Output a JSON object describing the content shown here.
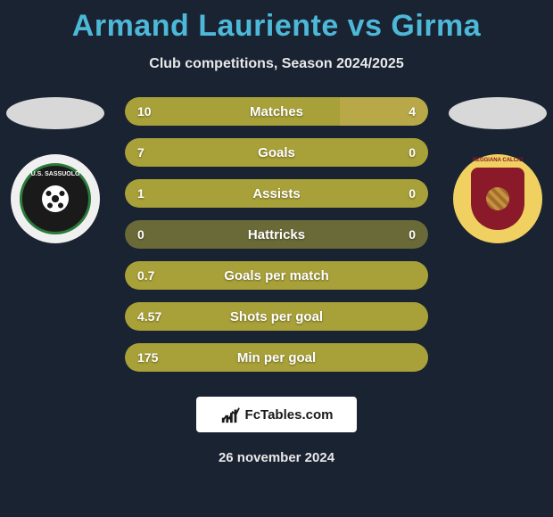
{
  "title": "Armand Lauriente vs Girma",
  "subtitle": "Club competitions, Season 2024/2025",
  "date": "26 november 2024",
  "watermark": "FcTables.com",
  "colors": {
    "background": "#1a2332",
    "title": "#4db8d8",
    "text": "#e8e8e8",
    "bar_empty": "#6a6a38",
    "bar_left_fill": "#a8a038",
    "bar_right_fill": "#b8a848",
    "ellipse": "#d8d8d8"
  },
  "left_player": {
    "crest_name": "sassuolo-crest",
    "crest_text": "U.S. SASSUOLO"
  },
  "right_player": {
    "crest_name": "reggiana-crest",
    "crest_text": "REGGIANA CALCIO"
  },
  "stats": [
    {
      "label": "Matches",
      "left_val": "10",
      "right_val": "4",
      "left_pct": 71,
      "right_pct": 29,
      "show_right_fill": true
    },
    {
      "label": "Goals",
      "left_val": "7",
      "right_val": "0",
      "left_pct": 100,
      "right_pct": 0,
      "show_right_fill": false
    },
    {
      "label": "Assists",
      "left_val": "1",
      "right_val": "0",
      "left_pct": 100,
      "right_pct": 0,
      "show_right_fill": false
    },
    {
      "label": "Hattricks",
      "left_val": "0",
      "right_val": "0",
      "left_pct": 0,
      "right_pct": 0,
      "show_right_fill": false
    },
    {
      "label": "Goals per match",
      "left_val": "0.7",
      "right_val": "",
      "left_pct": 100,
      "right_pct": 0,
      "show_right_fill": false
    },
    {
      "label": "Shots per goal",
      "left_val": "4.57",
      "right_val": "",
      "left_pct": 100,
      "right_pct": 0,
      "show_right_fill": false
    },
    {
      "label": "Min per goal",
      "left_val": "175",
      "right_val": "",
      "left_pct": 100,
      "right_pct": 0,
      "show_right_fill": false
    }
  ],
  "bar_style": {
    "height": 32,
    "radius": 16,
    "font_size": 15,
    "val_font_size": 14
  }
}
